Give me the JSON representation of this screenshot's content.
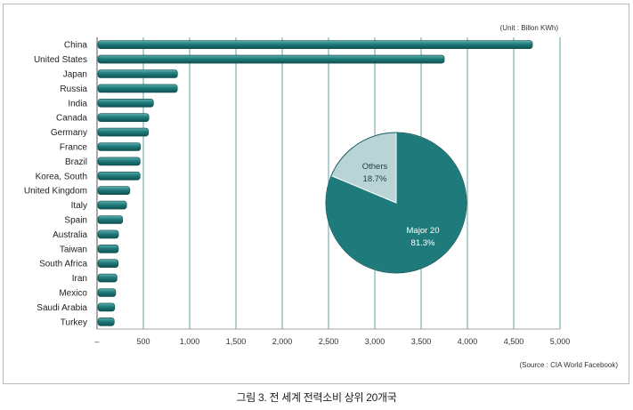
{
  "chart_data": [
    {
      "type": "bar",
      "orientation": "horizontal",
      "unit_note": "(Unit : Billon KWh)",
      "source_note": "(Source : CIA World Facebook)",
      "categories": [
        "China",
        "United States",
        "Japan",
        "Russia",
        "India",
        "Canada",
        "Germany",
        "France",
        "Brazil",
        "Korea, South",
        "United Kingdom",
        "Italy",
        "Spain",
        "Australia",
        "Taiwan",
        "South Africa",
        "Iran",
        "Mexico",
        "Saudi Arabia",
        "Turkey"
      ],
      "values": [
        4693,
        3741,
        859,
        858,
        600,
        550,
        545,
        460,
        456,
        455,
        345,
        309,
        267,
        222,
        221,
        219,
        206,
        192,
        181,
        176
      ],
      "xlim": [
        0,
        5000
      ],
      "xticks": [
        "–",
        "500",
        "1,000",
        "1,500",
        "2,000",
        "2,500",
        "3,000",
        "3,500",
        "4,000",
        "4,500",
        "5,000"
      ],
      "grid": "vertical",
      "bar_color": "#1f7b7b"
    },
    {
      "type": "pie",
      "slices": [
        {
          "label": "Major 20",
          "value": 81.3,
          "text": "81.3%",
          "color": "#1f7b7b"
        },
        {
          "label": "Others",
          "value": 18.7,
          "text": "18.7%",
          "color": "#b9d3d6"
        }
      ]
    }
  ],
  "caption": "그림 3. 전 세계 전력소비 상위 20개국"
}
